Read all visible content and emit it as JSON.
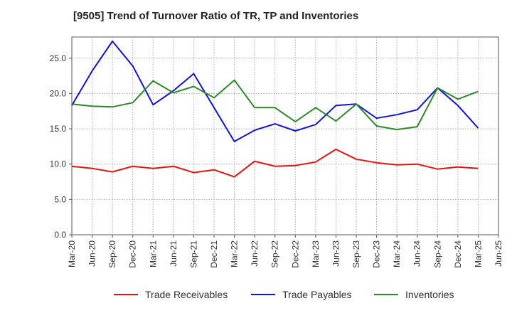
{
  "chart_data": {
    "type": "line",
    "title": "[9505]  Trend of Turnover Ratio of TR, TP and Inventories",
    "xlabel": "",
    "ylabel": "",
    "x_tick_labels": [
      "Mar-20",
      "Jun-20",
      "Sep-20",
      "Dec-20",
      "Mar-21",
      "Jun-21",
      "Sep-21",
      "Dec-21",
      "Mar-22",
      "Jun-22",
      "Sep-22",
      "Dec-22",
      "Mar-23",
      "Jun-23",
      "Sep-23",
      "Dec-23",
      "Mar-24",
      "Jun-24",
      "Sep-24",
      "Dec-24",
      "Mar-25",
      "Jun-25"
    ],
    "categories": [
      "Mar-20",
      "Jun-20",
      "Sep-20",
      "Dec-20",
      "Mar-21",
      "Jun-21",
      "Sep-21",
      "Dec-21",
      "Mar-22",
      "Jun-22",
      "Sep-22",
      "Dec-22",
      "Mar-23",
      "Jun-23",
      "Sep-23",
      "Dec-23",
      "Mar-24",
      "Jun-24",
      "Sep-24",
      "Dec-24",
      "Mar-25"
    ],
    "y_ticks": [
      "0.0",
      "5.0",
      "10.0",
      "15.0",
      "20.0",
      "25.0"
    ],
    "ylim": [
      0,
      28
    ],
    "grid": true,
    "legend_position": "bottom",
    "series": [
      {
        "name": "Trade Receivables",
        "color": "#e8120c",
        "values": [
          9.7,
          9.4,
          8.9,
          9.7,
          9.4,
          9.7,
          8.8,
          9.2,
          8.2,
          10.4,
          9.7,
          9.8,
          10.3,
          12.1,
          10.7,
          10.2,
          9.9,
          10.0,
          9.3,
          9.6,
          9.4
        ]
      },
      {
        "name": "Trade Payables",
        "color": "#0f14d8",
        "values": [
          18.3,
          23.2,
          27.4,
          23.9,
          18.4,
          20.4,
          22.8,
          18.0,
          13.2,
          14.8,
          15.7,
          14.7,
          15.6,
          18.3,
          18.5,
          16.5,
          17.0,
          17.7,
          20.8,
          18.3,
          15.1
        ]
      },
      {
        "name": "Inventories",
        "color": "#2a8a26",
        "values": [
          18.5,
          18.2,
          18.1,
          18.7,
          21.8,
          20.1,
          21.0,
          19.4,
          21.9,
          18.0,
          18.0,
          16.0,
          18.0,
          16.1,
          18.5,
          15.4,
          14.9,
          15.3,
          20.8,
          19.2,
          20.3
        ]
      }
    ]
  }
}
